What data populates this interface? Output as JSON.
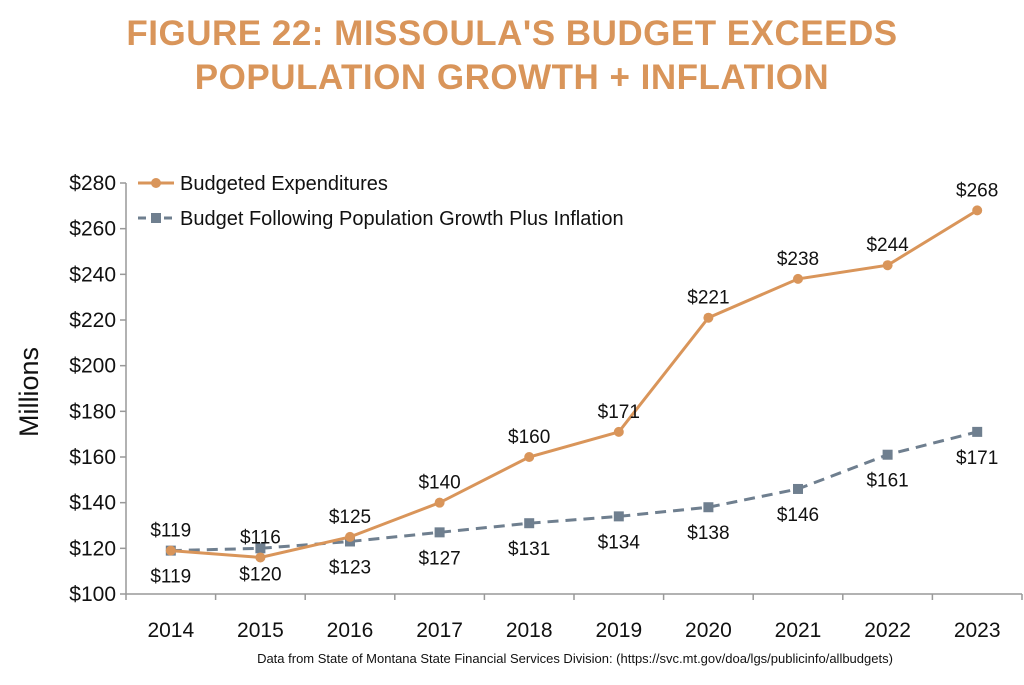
{
  "title_line1": "FIGURE 22: MISSOULA'S BUDGET EXCEEDS",
  "title_line2": "POPULATION GROWTH + INFLATION",
  "source": "Data from State of Montana State Financial Services Division: (https://svc.mt.gov/doa/lgs/publicinfo/allbudgets)",
  "colors": {
    "title": "#D9955A",
    "budget": "#D9955A",
    "inflation": "#6F7F8F",
    "axis": "#999999"
  },
  "chart_data": {
    "type": "line",
    "x": [
      "2014",
      "2015",
      "2016",
      "2017",
      "2018",
      "2019",
      "2020",
      "2021",
      "2022",
      "2023"
    ],
    "series": [
      {
        "name": "Budgeted Expenditures",
        "marker": "circle",
        "line": "solid",
        "values": [
          119,
          116,
          125,
          140,
          160,
          171,
          221,
          238,
          244,
          268
        ],
        "labels": [
          "$119",
          "$116",
          "$125",
          "$140",
          "$160",
          "$171",
          "$221",
          "$238",
          "$244",
          "$268"
        ]
      },
      {
        "name": "Budget Following Population Growth Plus Inflation",
        "marker": "square",
        "line": "dashed",
        "values": [
          119,
          120,
          123,
          127,
          131,
          134,
          138,
          146,
          161,
          171
        ],
        "labels": [
          "$119",
          "$120",
          "$123",
          "$127",
          "$131",
          "$134",
          "$138",
          "$146",
          "$161",
          "$171"
        ]
      }
    ],
    "yticks": [
      "$100",
      "$120",
      "$140",
      "$160",
      "$180",
      "$200",
      "$220",
      "$240",
      "$260",
      "$280"
    ],
    "ylim": [
      100,
      280
    ],
    "ylabel": "Millions",
    "xlabel": "",
    "grid": false,
    "legend": "top-left"
  }
}
